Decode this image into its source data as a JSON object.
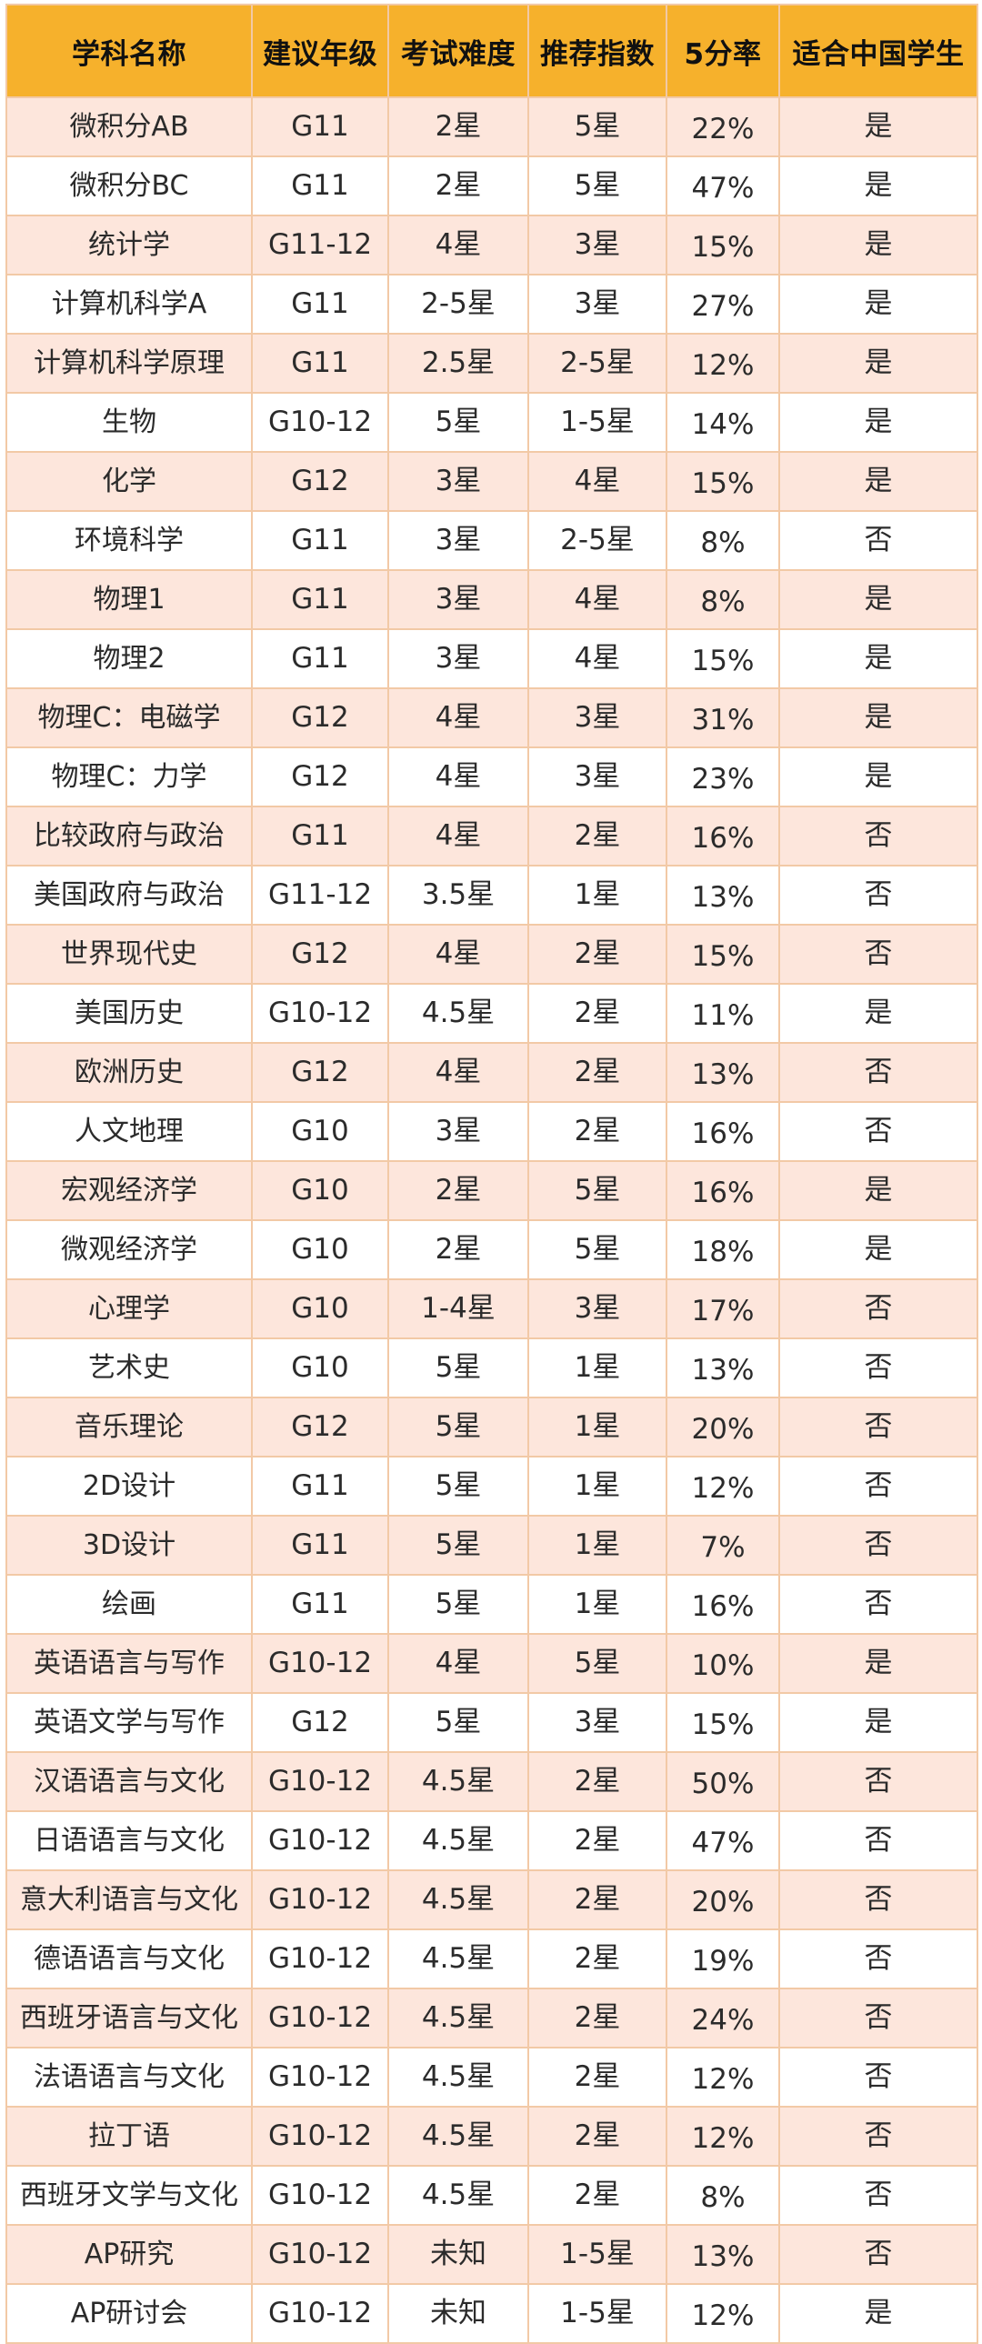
{
  "table": {
    "headers": [
      "学科名称",
      "建议年级",
      "考试难度",
      "推荐指数",
      "5分率",
      "适合中国学生"
    ],
    "rows": [
      [
        "微积分AB",
        "G11",
        "2星",
        "5星",
        "22%",
        "是"
      ],
      [
        "微积分BC",
        "G11",
        "2星",
        "5星",
        "47%",
        "是"
      ],
      [
        "统计学",
        "G11-12",
        "4星",
        "3星",
        "15%",
        "是"
      ],
      [
        "计算机科学A",
        "G11",
        "2-5星",
        "3星",
        "27%",
        "是"
      ],
      [
        "计算机科学原理",
        "G11",
        "2.5星",
        "2-5星",
        "12%",
        "是"
      ],
      [
        "生物",
        "G10-12",
        "5星",
        "1-5星",
        "14%",
        "是"
      ],
      [
        "化学",
        "G12",
        "3星",
        "4星",
        "15%",
        "是"
      ],
      [
        "环境科学",
        "G11",
        "3星",
        "2-5星",
        "8%",
        "否"
      ],
      [
        "物理1",
        "G11",
        "3星",
        "4星",
        "8%",
        "是"
      ],
      [
        "物理2",
        "G11",
        "3星",
        "4星",
        "15%",
        "是"
      ],
      [
        "物理C：电磁学",
        "G12",
        "4星",
        "3星",
        "31%",
        "是"
      ],
      [
        "物理C：力学",
        "G12",
        "4星",
        "3星",
        "23%",
        "是"
      ],
      [
        "比较政府与政治",
        "G11",
        "4星",
        "2星",
        "16%",
        "否"
      ],
      [
        "美国政府与政治",
        "G11-12",
        "3.5星",
        "1星",
        "13%",
        "否"
      ],
      [
        "世界现代史",
        "G12",
        "4星",
        "2星",
        "15%",
        "否"
      ],
      [
        "美国历史",
        "G10-12",
        "4.5星",
        "2星",
        "11%",
        "是"
      ],
      [
        "欧洲历史",
        "G12",
        "4星",
        "2星",
        "13%",
        "否"
      ],
      [
        "人文地理",
        "G10",
        "3星",
        "2星",
        "16%",
        "否"
      ],
      [
        "宏观经济学",
        "G10",
        "2星",
        "5星",
        "16%",
        "是"
      ],
      [
        "微观经济学",
        "G10",
        "2星",
        "5星",
        "18%",
        "是"
      ],
      [
        "心理学",
        "G10",
        "1-4星",
        "3星",
        "17%",
        "否"
      ],
      [
        "艺术史",
        "G10",
        "5星",
        "1星",
        "13%",
        "否"
      ],
      [
        "音乐理论",
        "G12",
        "5星",
        "1星",
        "20%",
        "否"
      ],
      [
        "2D设计",
        "G11",
        "5星",
        "1星",
        "12%",
        "否"
      ],
      [
        "3D设计",
        "G11",
        "5星",
        "1星",
        "7%",
        "否"
      ],
      [
        "绘画",
        "G11",
        "5星",
        "1星",
        "16%",
        "否"
      ],
      [
        "英语语言与写作",
        "G10-12",
        "4星",
        "5星",
        "10%",
        "是"
      ],
      [
        "英语文学与写作",
        "G12",
        "5星",
        "3星",
        "15%",
        "是"
      ],
      [
        "汉语语言与文化",
        "G10-12",
        "4.5星",
        "2星",
        "50%",
        "否"
      ],
      [
        "日语语言与文化",
        "G10-12",
        "4.5星",
        "2星",
        "47%",
        "否"
      ],
      [
        "意大利语言与文化",
        "G10-12",
        "4.5星",
        "2星",
        "20%",
        "否"
      ],
      [
        "德语语言与文化",
        "G10-12",
        "4.5星",
        "2星",
        "19%",
        "否"
      ],
      [
        "西班牙语言与文化",
        "G10-12",
        "4.5星",
        "2星",
        "24%",
        "否"
      ],
      [
        "法语语言与文化",
        "G10-12",
        "4.5星",
        "2星",
        "12%",
        "否"
      ],
      [
        "拉丁语",
        "G10-12",
        "4.5星",
        "2星",
        "12%",
        "否"
      ],
      [
        "西班牙文学与文化",
        "G10-12",
        "4.5星",
        "2星",
        "8%",
        "否"
      ],
      [
        "AP研究",
        "G10-12",
        "未知",
        "1-5星",
        "13%",
        "否"
      ],
      [
        "AP研讨会",
        "G10-12",
        "未知",
        "1-5星",
        "12%",
        "是"
      ]
    ]
  },
  "colors": {
    "header_bg": "#f6b12c",
    "odd_row_bg": "#fde6dc",
    "even_row_bg": "#ffffff",
    "grid_line": "#f2c9a6"
  }
}
